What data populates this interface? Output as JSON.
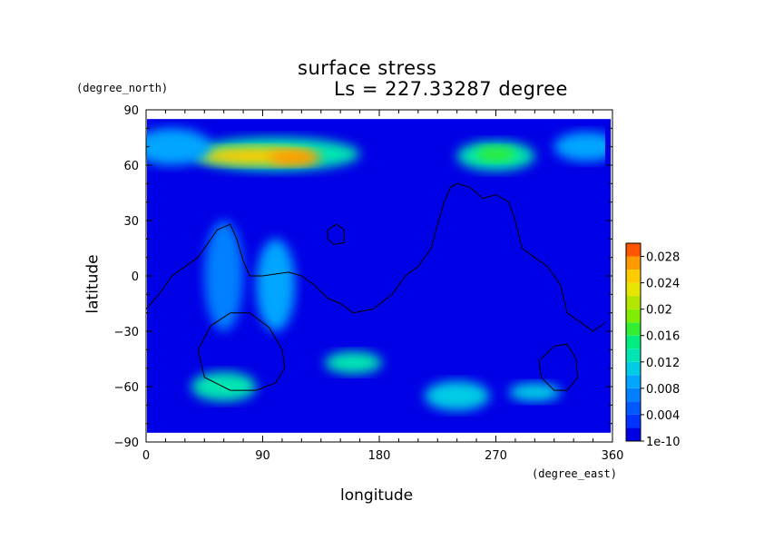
{
  "chart_data": {
    "type": "heatmap",
    "title": "surface stress",
    "subtitle": "Ls = 227.33287 degree",
    "xlabel": "longitude",
    "ylabel": "latitude",
    "x_unit": "(degree_east)",
    "y_unit": "(degree_north)",
    "xlim": [
      0,
      360
    ],
    "ylim": [
      -90,
      90
    ],
    "x_ticks": [
      "0",
      "90",
      "180",
      "270",
      "360"
    ],
    "y_ticks": [
      "90",
      "60",
      "30",
      "0",
      "−30",
      "−60",
      "−90"
    ],
    "colorbar": {
      "levels": [
        0,
        0.002,
        0.004,
        0.006,
        0.008,
        0.01,
        0.012,
        0.014,
        0.016,
        0.018,
        0.02,
        0.022,
        0.024,
        0.026,
        0.028,
        0.03
      ],
      "colors": [
        "#0000e6",
        "#0033ff",
        "#0059ff",
        "#0080ff",
        "#00a6ff",
        "#00cce6",
        "#00e6b3",
        "#00ee80",
        "#33ee33",
        "#80ee00",
        "#b3e600",
        "#e6e600",
        "#ffcc00",
        "#ff9900",
        "#ff5500"
      ],
      "tick_labels": [
        "1e-10",
        "0.004",
        "0.008",
        "0.012",
        "0.016",
        "0.02",
        "0.024",
        "0.028"
      ],
      "tick_values": [
        0,
        0.004,
        0.008,
        0.012,
        0.016,
        0.02,
        0.024,
        0.028
      ]
    },
    "regions": [
      {
        "lon": 100,
        "lat": 66,
        "rlon": 65,
        "rlat": 9,
        "value": 0.012
      },
      {
        "lon": 85,
        "lat": 65,
        "rlon": 45,
        "rlat": 5,
        "value": 0.024
      },
      {
        "lon": 115,
        "lat": 64,
        "rlon": 20,
        "rlat": 4,
        "value": 0.027
      },
      {
        "lon": 270,
        "lat": 65,
        "rlon": 30,
        "rlat": 8,
        "value": 0.012
      },
      {
        "lon": 270,
        "lat": 66,
        "rlon": 16,
        "rlat": 4,
        "value": 0.016
      },
      {
        "lon": 20,
        "lat": 70,
        "rlon": 30,
        "rlat": 10,
        "value": 0.008
      },
      {
        "lon": 340,
        "lat": 70,
        "rlon": 25,
        "rlat": 8,
        "value": 0.008
      },
      {
        "lon": 60,
        "lat": -60,
        "rlon": 25,
        "rlat": 8,
        "value": 0.012
      },
      {
        "lon": 160,
        "lat": -47,
        "rlon": 22,
        "rlat": 6,
        "value": 0.012
      },
      {
        "lon": 240,
        "lat": -65,
        "rlon": 25,
        "rlat": 8,
        "value": 0.011
      },
      {
        "lon": 300,
        "lat": -63,
        "rlon": 20,
        "rlat": 5,
        "value": 0.01
      },
      {
        "lon": 60,
        "lat": 0,
        "rlon": 15,
        "rlat": 30,
        "value": 0.007
      },
      {
        "lon": 100,
        "lat": -5,
        "rlon": 15,
        "rlat": 25,
        "value": 0.008
      }
    ],
    "outlines": [
      {
        "name": "coast",
        "lon": [
          0,
          10,
          20,
          30,
          40,
          45,
          55,
          65,
          70,
          75,
          80,
          90,
          110,
          120,
          130,
          140,
          150,
          160,
          175,
          190,
          200,
          210,
          220,
          225,
          230,
          235,
          240,
          250,
          260,
          270,
          280,
          285,
          290,
          300,
          310,
          320,
          325,
          335,
          345,
          355,
          360
        ],
        "lat": [
          -18,
          -10,
          0,
          5,
          10,
          15,
          25,
          28,
          20,
          8,
          0,
          0,
          2,
          0,
          -5,
          -12,
          -15,
          -20,
          -18,
          -10,
          0,
          5,
          15,
          28,
          40,
          48,
          50,
          48,
          42,
          44,
          40,
          30,
          15,
          10,
          5,
          -5,
          -20,
          -25,
          -30,
          -25,
          -20
        ]
      },
      {
        "name": "loop-a",
        "lon": [
          40,
          50,
          65,
          80,
          95,
          105,
          107,
          100,
          85,
          65,
          45,
          40
        ],
        "lat": [
          -40,
          -27,
          -20,
          -20,
          -28,
          -40,
          -50,
          -58,
          -62,
          -62,
          -55,
          -40
        ]
      },
      {
        "name": "loop-b",
        "lon": [
          305,
          315,
          325,
          332,
          333,
          325,
          315,
          305,
          303
        ],
        "lat": [
          -45,
          -38,
          -37,
          -45,
          -55,
          -62,
          -62,
          -55,
          -45
        ]
      },
      {
        "name": "loop-c",
        "lon": [
          140,
          147,
          153,
          153,
          145,
          140,
          140
        ],
        "lat": [
          25,
          28,
          25,
          18,
          17,
          20,
          25
        ]
      }
    ]
  }
}
